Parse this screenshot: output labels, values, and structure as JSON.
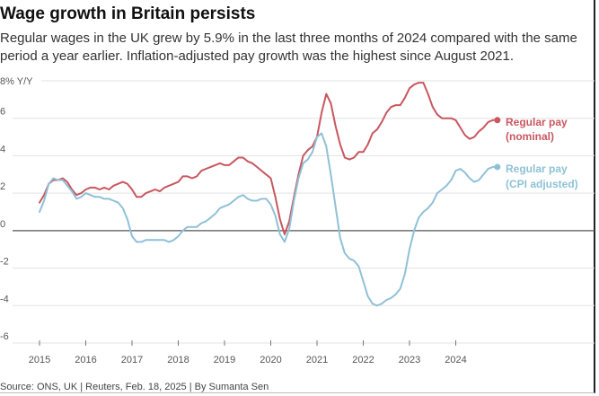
{
  "header": {
    "title": "Wage growth in Britain persists",
    "subtitle": "Regular wages in the UK grew by 5.9% in the last three months of 2024 compared with the same period a year earlier. Inflation-adjusted pay growth was the highest since August 2021."
  },
  "footer": {
    "source": "Source: ONS, UK | Reuters, Feb. 18, 2025 | By Sumanta Sen"
  },
  "chart_data": {
    "type": "line",
    "ylabel": "8% Y/Y",
    "xlim": [
      2014.6,
      2025.4
    ],
    "ylim": [
      -6,
      8
    ],
    "yticks": [
      -6,
      -4,
      -2,
      0,
      2,
      4,
      6
    ],
    "ytick_labels": [
      "-6",
      "-4",
      "-2",
      "0",
      "2",
      "4",
      "6"
    ],
    "xticks": [
      2015,
      2016,
      2017,
      2018,
      2019,
      2020,
      2021,
      2022,
      2023,
      2024
    ],
    "xtick_labels": [
      "2015",
      "2016",
      "2017",
      "2018",
      "2019",
      "2020",
      "2021",
      "2022",
      "2023",
      "2024"
    ],
    "grid": true,
    "legend_position": "right, at line ends",
    "series": [
      {
        "name": "Regular pay (nominal)",
        "legend_lines": [
          "Regular pay",
          "(nominal)"
        ],
        "color": "#c8575f",
        "x": [
          2015.0,
          2015.1,
          2015.2,
          2015.3,
          2015.4,
          2015.5,
          2015.6,
          2015.7,
          2015.8,
          2015.9,
          2016.0,
          2016.1,
          2016.2,
          2016.3,
          2016.4,
          2016.5,
          2016.6,
          2016.7,
          2016.8,
          2016.9,
          2017.0,
          2017.1,
          2017.2,
          2017.3,
          2017.4,
          2017.5,
          2017.6,
          2017.7,
          2017.8,
          2017.9,
          2018.0,
          2018.1,
          2018.2,
          2018.3,
          2018.4,
          2018.5,
          2018.6,
          2018.7,
          2018.8,
          2018.9,
          2019.0,
          2019.1,
          2019.2,
          2019.3,
          2019.4,
          2019.5,
          2019.6,
          2019.7,
          2019.8,
          2019.9,
          2020.0,
          2020.1,
          2020.2,
          2020.3,
          2020.4,
          2020.5,
          2020.6,
          2020.7,
          2020.8,
          2020.9,
          2021.0,
          2021.1,
          2021.2,
          2021.3,
          2021.4,
          2021.5,
          2021.6,
          2021.7,
          2021.8,
          2021.9,
          2022.0,
          2022.1,
          2022.2,
          2022.3,
          2022.4,
          2022.5,
          2022.6,
          2022.7,
          2022.8,
          2022.9,
          2023.0,
          2023.1,
          2023.2,
          2023.3,
          2023.4,
          2023.5,
          2023.6,
          2023.7,
          2023.8,
          2023.9,
          2024.0,
          2024.1,
          2024.2,
          2024.3,
          2024.4,
          2024.5,
          2024.6,
          2024.7,
          2024.8,
          2024.9
        ],
        "values": [
          1.5,
          1.9,
          2.5,
          2.7,
          2.7,
          2.8,
          2.6,
          2.2,
          1.9,
          2.0,
          2.2,
          2.3,
          2.3,
          2.2,
          2.3,
          2.2,
          2.4,
          2.5,
          2.6,
          2.5,
          2.2,
          1.8,
          1.8,
          2.0,
          2.1,
          2.2,
          2.1,
          2.3,
          2.4,
          2.5,
          2.6,
          2.9,
          2.9,
          2.8,
          2.9,
          3.2,
          3.3,
          3.4,
          3.5,
          3.6,
          3.5,
          3.5,
          3.7,
          3.9,
          3.9,
          3.7,
          3.6,
          3.4,
          3.2,
          3.0,
          2.8,
          1.8,
          0.6,
          -0.2,
          0.5,
          1.8,
          3.0,
          4.0,
          4.3,
          4.5,
          5.0,
          6.3,
          7.3,
          6.8,
          5.6,
          4.6,
          3.9,
          3.8,
          3.9,
          4.2,
          4.2,
          4.6,
          5.2,
          5.4,
          5.8,
          6.3,
          6.6,
          6.7,
          6.7,
          7.1,
          7.6,
          7.8,
          7.9,
          7.9,
          7.3,
          6.6,
          6.2,
          6.0,
          6.0,
          6.0,
          5.9,
          5.5,
          5.1,
          4.9,
          5.0,
          5.3,
          5.5,
          5.8,
          5.9,
          5.9
        ]
      },
      {
        "name": "Regular pay (CPI adjusted)",
        "legend_lines": [
          "Regular pay",
          "(CPI adjusted)"
        ],
        "color": "#8fc1d6",
        "x": [
          2015.0,
          2015.1,
          2015.2,
          2015.3,
          2015.4,
          2015.5,
          2015.6,
          2015.7,
          2015.8,
          2015.9,
          2016.0,
          2016.1,
          2016.2,
          2016.3,
          2016.4,
          2016.5,
          2016.6,
          2016.7,
          2016.8,
          2016.9,
          2017.0,
          2017.1,
          2017.2,
          2017.3,
          2017.4,
          2017.5,
          2017.6,
          2017.7,
          2017.8,
          2017.9,
          2018.0,
          2018.1,
          2018.2,
          2018.3,
          2018.4,
          2018.5,
          2018.6,
          2018.7,
          2018.8,
          2018.9,
          2019.0,
          2019.1,
          2019.2,
          2019.3,
          2019.4,
          2019.5,
          2019.6,
          2019.7,
          2019.8,
          2019.9,
          2020.0,
          2020.1,
          2020.2,
          2020.3,
          2020.4,
          2020.5,
          2020.6,
          2020.7,
          2020.8,
          2020.9,
          2021.0,
          2021.1,
          2021.2,
          2021.3,
          2021.4,
          2021.5,
          2021.6,
          2021.7,
          2021.8,
          2021.9,
          2022.0,
          2022.1,
          2022.2,
          2022.3,
          2022.4,
          2022.5,
          2022.6,
          2022.7,
          2022.8,
          2022.9,
          2023.0,
          2023.1,
          2023.2,
          2023.3,
          2023.4,
          2023.5,
          2023.6,
          2023.7,
          2023.8,
          2023.9,
          2024.0,
          2024.1,
          2024.2,
          2024.3,
          2024.4,
          2024.5,
          2024.6,
          2024.7,
          2024.8,
          2024.9
        ],
        "values": [
          1.0,
          1.6,
          2.5,
          2.8,
          2.7,
          2.7,
          2.4,
          2.1,
          1.7,
          1.8,
          2.0,
          1.9,
          1.8,
          1.8,
          1.7,
          1.7,
          1.6,
          1.5,
          1.2,
          0.6,
          -0.3,
          -0.6,
          -0.6,
          -0.5,
          -0.5,
          -0.5,
          -0.5,
          -0.5,
          -0.6,
          -0.5,
          -0.3,
          0.0,
          0.2,
          0.2,
          0.2,
          0.4,
          0.5,
          0.7,
          0.9,
          1.2,
          1.3,
          1.4,
          1.6,
          1.8,
          1.9,
          1.7,
          1.6,
          1.6,
          1.7,
          1.7,
          1.4,
          0.8,
          -0.2,
          -0.6,
          0.1,
          1.6,
          2.8,
          3.6,
          3.8,
          4.2,
          5.0,
          5.2,
          4.5,
          3.0,
          1.3,
          -0.4,
          -1.2,
          -1.5,
          -1.6,
          -1.9,
          -2.7,
          -3.5,
          -3.9,
          -4.0,
          -3.9,
          -3.7,
          -3.6,
          -3.4,
          -3.1,
          -2.3,
          -1.0,
          0.0,
          0.7,
          1.0,
          1.2,
          1.5,
          2.0,
          2.2,
          2.4,
          2.7,
          3.2,
          3.3,
          3.1,
          2.8,
          2.6,
          2.7,
          3.0,
          3.3,
          3.4,
          3.4
        ]
      }
    ]
  }
}
